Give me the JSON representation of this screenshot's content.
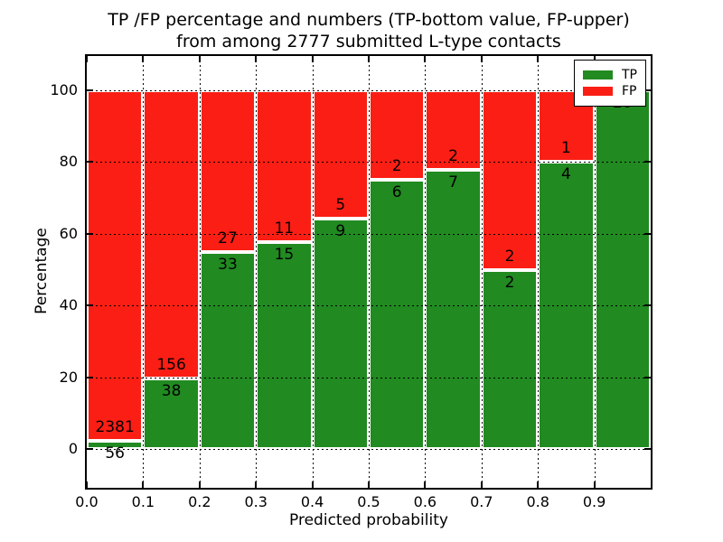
{
  "title": {
    "line1": "TP /FP percentage and numbers (TP-bottom value, FP-upper)",
    "line2": "from among 2777 submitted L-type contacts"
  },
  "chart_data": {
    "type": "bar",
    "stacked": true,
    "title": "TP /FP percentage and numbers (TP-bottom value, FP-upper) from among 2777 submitted L-type contacts",
    "xlabel": "Predicted probability",
    "ylabel": "Percentage",
    "total_contacts": 2777,
    "xlim": [
      0.0,
      1.0
    ],
    "ylim": [
      -11,
      110
    ],
    "bin_width": 0.1,
    "grid": "dotted",
    "x_ticks": [
      "0.0",
      "0.1",
      "0.2",
      "0.3",
      "0.4",
      "0.5",
      "0.6",
      "0.7",
      "0.8",
      "0.9"
    ],
    "y_ticks": [
      0,
      20,
      40,
      60,
      80,
      100
    ],
    "bins": [
      {
        "range": "0.0-0.1",
        "tp": 56,
        "fp": 2381,
        "tp_pct": 2.3
      },
      {
        "range": "0.1-0.2",
        "tp": 38,
        "fp": 156,
        "tp_pct": 19.59
      },
      {
        "range": "0.2-0.3",
        "tp": 33,
        "fp": 27,
        "tp_pct": 55.0
      },
      {
        "range": "0.3-0.4",
        "tp": 15,
        "fp": 11,
        "tp_pct": 57.69
      },
      {
        "range": "0.4-0.5",
        "tp": 9,
        "fp": 5,
        "tp_pct": 64.29
      },
      {
        "range": "0.5-0.6",
        "tp": 6,
        "fp": 2,
        "tp_pct": 75.0
      },
      {
        "range": "0.6-0.7",
        "tp": 7,
        "fp": 2,
        "tp_pct": 77.78
      },
      {
        "range": "0.7-0.8",
        "tp": 2,
        "fp": 2,
        "tp_pct": 50.0
      },
      {
        "range": "0.8-0.9",
        "tp": 4,
        "fp": 1,
        "tp_pct": 80.0
      },
      {
        "range": "0.9-1.0",
        "tp": 20,
        "fp": 0,
        "tp_pct": 100.0
      }
    ],
    "series": [
      {
        "name": "TP",
        "color": "#218a21",
        "counts": [
          56,
          38,
          33,
          15,
          9,
          6,
          7,
          2,
          4,
          20
        ]
      },
      {
        "name": "FP",
        "color": "#fb1e14",
        "counts": [
          2381,
          156,
          27,
          11,
          5,
          2,
          2,
          2,
          1,
          0
        ]
      }
    ],
    "legend": {
      "position": "upper right",
      "entries": [
        {
          "label": "TP",
          "color": "#218a21"
        },
        {
          "label": "FP",
          "color": "#fb1e14"
        }
      ]
    }
  },
  "colors": {
    "tp": "#218a21",
    "fp": "#fb1e14",
    "grid": "#000000",
    "background": "#ffffff"
  }
}
